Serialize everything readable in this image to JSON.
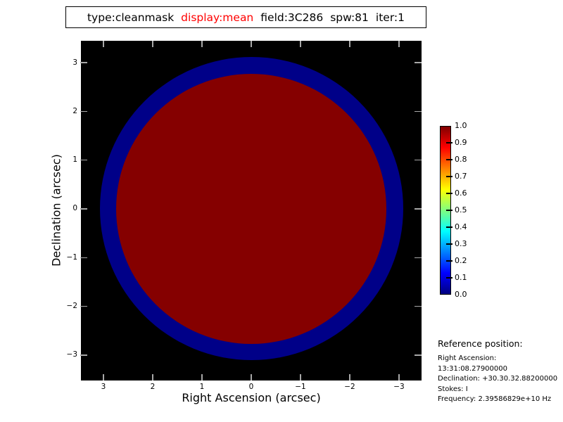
{
  "title_box": {
    "segments": [
      {
        "text": "type:cleanmask",
        "color": "#000000"
      },
      {
        "text": "display:mean",
        "color": "#ff0000"
      },
      {
        "text": "field:3C286",
        "color": "#000000"
      },
      {
        "text": "spw:81",
        "color": "#000000"
      },
      {
        "text": "iter:1",
        "color": "#000000"
      }
    ]
  },
  "plot": {
    "xlabel": "Right Ascension (arcsec)",
    "ylabel": "Declination (arcsec)",
    "x_tick_labels": [
      "3",
      "2",
      "1",
      "0",
      "−1",
      "−2",
      "−3"
    ],
    "y_tick_labels": [
      "3",
      "2",
      "1",
      "0",
      "−1",
      "−2",
      "−3"
    ],
    "bg_color": "#000000",
    "ring_color": "#000088",
    "disk_color": "#850000"
  },
  "colorbar": {
    "labels": [
      "1.0",
      "0.9",
      "0.8",
      "0.7",
      "0.6",
      "0.5",
      "0.4",
      "0.3",
      "0.2",
      "0.1",
      "0.0"
    ],
    "colormap": "jet",
    "min": "0.0",
    "max": "1.0"
  },
  "reference": {
    "heading": "Reference position:",
    "lines": [
      "Right Ascension: 13:31:08.27900000",
      "Declination: +30.30.32.88200000",
      "Stokes: I",
      "Frequency: 2.39586829e+10 Hz"
    ]
  },
  "chart_data": {
    "type": "heatmap",
    "title": "type:cleanmask display:mean field:3C286 spw:81 iter:1",
    "xlabel": "Right Ascension (arcsec)",
    "ylabel": "Declination (arcsec)",
    "x_ticks": [
      3,
      2,
      1,
      0,
      -1,
      -2,
      -3
    ],
    "y_ticks": [
      -3,
      -2,
      -1,
      0,
      1,
      2,
      3
    ],
    "xlim": [
      3.46,
      -3.45
    ],
    "ylim": [
      -3.48,
      3.42
    ],
    "x_axis_reversed": true,
    "colormap": "jet",
    "colorbar_range": [
      0.0,
      1.0
    ],
    "colorbar_tick_step": 0.1,
    "legend_position": "right-colorbar",
    "grid": false,
    "content": {
      "description": "Circular clean-mask raster on zero-valued (black) background, centered at origin",
      "background_value": 0.0,
      "outer_ring": {
        "center_arcsec": [
          0,
          0
        ],
        "outer_radius_arcsec": 3.08,
        "value_approx": 0.05,
        "rendered_color": "#000088"
      },
      "inner_disk": {
        "center_arcsec": [
          0,
          0
        ],
        "radius_arcsec": 2.74,
        "value": 1.0,
        "rendered_color": "#850000"
      }
    }
  }
}
